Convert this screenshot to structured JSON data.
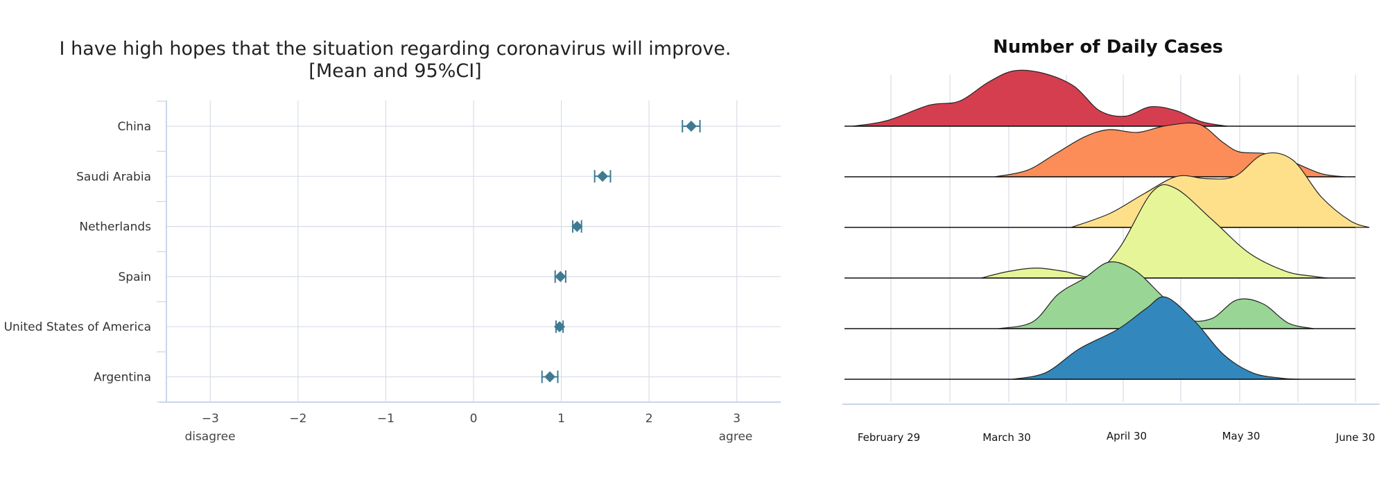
{
  "chart_data": [
    {
      "type": "scatter",
      "title": "I have high hopes that the situation regarding coronavirus will improve.",
      "subtitle": "[Mean and 95%CI]",
      "categories": [
        "China",
        "Saudi Arabia",
        "Netherlands",
        "Spain",
        "United States of America",
        "Argentina"
      ],
      "series": [
        {
          "values": [
            2.48,
            1.47,
            1.18,
            0.99,
            0.98,
            0.87
          ],
          "ci_low": [
            2.38,
            1.38,
            1.13,
            0.93,
            0.94,
            0.78
          ],
          "ci_high": [
            2.58,
            1.56,
            1.23,
            1.05,
            1.02,
            0.96
          ]
        }
      ],
      "x_ticks": [
        "−3",
        "−2",
        "−1",
        "0",
        "1",
        "2",
        "3"
      ],
      "x_tick_values": [
        -3,
        -2,
        -1,
        0,
        1,
        2,
        3
      ],
      "xlim": [
        -3.5,
        3.5
      ],
      "anchors": {
        "left": "disagree",
        "right": "agree"
      },
      "grid": true,
      "colors": {
        "marker": "#3f7a93",
        "grid": "#d8dde6",
        "axis": "#c9d6ea"
      }
    },
    {
      "type": "area",
      "title": "Number of Daily Cases",
      "x_ticks": [
        "February 29",
        "March 30",
        "April 30",
        "May 30",
        "June 30"
      ],
      "grid": true,
      "ridges": [
        {
          "color": "#d53e4f",
          "points": [
            [
              0,
              0
            ],
            [
              0.08,
              0.1
            ],
            [
              0.18,
              0.38
            ],
            [
              0.25,
              0.45
            ],
            [
              0.32,
              0.8
            ],
            [
              0.38,
              1.0
            ],
            [
              0.45,
              0.95
            ],
            [
              0.52,
              0.72
            ],
            [
              0.58,
              0.28
            ],
            [
              0.64,
              0.18
            ],
            [
              0.7,
              0.35
            ],
            [
              0.76,
              0.28
            ],
            [
              0.82,
              0.08
            ],
            [
              0.88,
              0
            ]
          ]
        },
        {
          "color": "#fc8d59",
          "points": [
            [
              0,
              0
            ],
            [
              0.08,
              0.12
            ],
            [
              0.15,
              0.42
            ],
            [
              0.22,
              0.72
            ],
            [
              0.28,
              0.85
            ],
            [
              0.35,
              0.8
            ],
            [
              0.42,
              0.92
            ],
            [
              0.5,
              0.95
            ],
            [
              0.56,
              0.62
            ],
            [
              0.6,
              0.45
            ],
            [
              0.66,
              0.42
            ],
            [
              0.72,
              0.3
            ],
            [
              0.8,
              0.06
            ],
            [
              0.86,
              0
            ]
          ]
        },
        {
          "color": "#fee08b",
          "points": [
            [
              0,
              0
            ],
            [
              0.08,
              0.25
            ],
            [
              0.15,
              0.6
            ],
            [
              0.22,
              0.92
            ],
            [
              0.28,
              0.88
            ],
            [
              0.34,
              0.92
            ],
            [
              0.4,
              1.32
            ],
            [
              0.46,
              1.22
            ],
            [
              0.52,
              0.55
            ],
            [
              0.58,
              0.12
            ],
            [
              0.62,
              0
            ]
          ]
        },
        {
          "color": "#e6f598",
          "points": [
            [
              0,
              0
            ],
            [
              0.06,
              0.12
            ],
            [
              0.12,
              0.18
            ],
            [
              0.18,
              0.12
            ],
            [
              0.24,
              0.05
            ],
            [
              0.3,
              0.55
            ],
            [
              0.37,
              1.55
            ],
            [
              0.42,
              1.62
            ],
            [
              0.5,
              1.05
            ],
            [
              0.58,
              0.45
            ],
            [
              0.66,
              0.12
            ],
            [
              0.72,
              0.03
            ],
            [
              0.75,
              0
            ]
          ]
        },
        {
          "color": "#99d594",
          "points": [
            [
              0,
              0
            ],
            [
              0.08,
              0.12
            ],
            [
              0.14,
              0.62
            ],
            [
              0.2,
              0.9
            ],
            [
              0.26,
              1.2
            ],
            [
              0.32,
              1.05
            ],
            [
              0.38,
              0.62
            ],
            [
              0.44,
              0.18
            ],
            [
              0.5,
              0.18
            ],
            [
              0.56,
              0.52
            ],
            [
              0.62,
              0.45
            ],
            [
              0.68,
              0.1
            ],
            [
              0.74,
              0
            ]
          ]
        },
        {
          "color": "#3288bd",
          "points": [
            [
              0,
              0
            ],
            [
              0.07,
              0.12
            ],
            [
              0.14,
              0.55
            ],
            [
              0.22,
              0.9
            ],
            [
              0.28,
              1.28
            ],
            [
              0.32,
              1.48
            ],
            [
              0.38,
              1.05
            ],
            [
              0.44,
              0.45
            ],
            [
              0.5,
              0.12
            ],
            [
              0.56,
              0.02
            ],
            [
              0.6,
              0
            ]
          ]
        }
      ],
      "colors": {
        "grid": "#d8dde6",
        "baseline": "#111111",
        "outline": "#222222"
      }
    }
  ]
}
